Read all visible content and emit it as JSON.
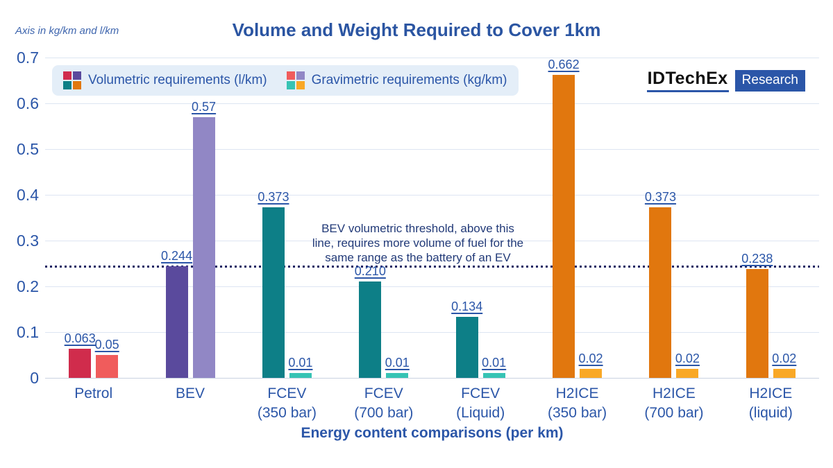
{
  "page": {
    "axis_note": "Axis in kg/km and l/km",
    "title": "Volume and Weight Required to Cover 1km",
    "xlabel": "Energy content comparisons (per km)"
  },
  "brand": {
    "name": "IDTechEx",
    "badge": "Research",
    "accent": "#2b56a8"
  },
  "legend": {
    "items": [
      {
        "label": "Volumetric requirements (l/km)",
        "swatches": [
          "#d02c4c",
          "#5a4a9d",
          "#0d7f87",
          "#e1770e"
        ]
      },
      {
        "label": "Gravimetric requirements (kg/km)",
        "swatches": [
          "#f05c5c",
          "#9187c5",
          "#36c3b4",
          "#f9a826"
        ]
      }
    ]
  },
  "annotation": {
    "lines": [
      "BEV volumetric threshold, above this",
      "line, requires more volume of fuel for the",
      "same range as the battery of an EV"
    ]
  },
  "palette": {
    "text_blue": "#2b56a8",
    "title_blue": "#2b55a2",
    "gridline": "#dde5f2",
    "baseline": "#c9d1e1",
    "threshold_line": "#151d63",
    "legend_background": "#e4eef8",
    "annotation_text": "#223a78"
  },
  "chart_data": {
    "type": "bar",
    "title": "Volume and Weight Required to Cover 1km",
    "xlabel": "Energy content comparisons (per km)",
    "ylabel": "Axis in kg/km and l/km",
    "ylim": [
      0,
      0.7
    ],
    "ytick_labels": [
      "0",
      "0.1",
      "0.2",
      "0.3",
      "0.4",
      "0.5",
      "0.6",
      "0.7"
    ],
    "grid": true,
    "legend_position": "top-left",
    "series_names": [
      "Volumetric requirements (l/km)",
      "Gravimetric requirements (kg/km)"
    ],
    "threshold": {
      "value": 0.244,
      "description": "BEV volumetric threshold",
      "style": "dotted"
    },
    "groups": [
      {
        "category_lines": [
          "Petrol"
        ],
        "volumetric": {
          "value": 0.063,
          "label": "0.063",
          "color": "#d02c4c"
        },
        "gravimetric": {
          "value": 0.05,
          "label": "0.05",
          "color": "#f05c5c"
        }
      },
      {
        "category_lines": [
          "BEV"
        ],
        "volumetric": {
          "value": 0.244,
          "label": "0.244",
          "color": "#5a4a9d"
        },
        "gravimetric": {
          "value": 0.57,
          "label": "0.57",
          "color": "#9187c5"
        }
      },
      {
        "category_lines": [
          "FCEV",
          "(350 bar)"
        ],
        "volumetric": {
          "value": 0.373,
          "label": "0.373",
          "color": "#0d7f87"
        },
        "gravimetric": {
          "value": 0.01,
          "label": "0.01",
          "color": "#36c3b4"
        }
      },
      {
        "category_lines": [
          "FCEV",
          "(700 bar)"
        ],
        "volumetric": {
          "value": 0.21,
          "label": "0.210",
          "color": "#0d7f87"
        },
        "gravimetric": {
          "value": 0.01,
          "label": "0.01",
          "color": "#36c3b4"
        }
      },
      {
        "category_lines": [
          "FCEV",
          "(Liquid)"
        ],
        "volumetric": {
          "value": 0.134,
          "label": "0.134",
          "color": "#0d7f87"
        },
        "gravimetric": {
          "value": 0.01,
          "label": "0.01",
          "color": "#36c3b4"
        }
      },
      {
        "category_lines": [
          "H2ICE",
          "(350 bar)"
        ],
        "volumetric": {
          "value": 0.662,
          "label": "0.662",
          "color": "#e1770e"
        },
        "gravimetric": {
          "value": 0.02,
          "label": "0.02",
          "color": "#f9a826"
        }
      },
      {
        "category_lines": [
          "H2ICE",
          "(700 bar)"
        ],
        "volumetric": {
          "value": 0.373,
          "label": "0.373",
          "color": "#e1770e"
        },
        "gravimetric": {
          "value": 0.02,
          "label": "0.02",
          "color": "#f9a826"
        }
      },
      {
        "category_lines": [
          "H2ICE",
          "(liquid)"
        ],
        "volumetric": {
          "value": 0.238,
          "label": "0.238",
          "color": "#e1770e"
        },
        "gravimetric": {
          "value": 0.02,
          "label": "0.02",
          "color": "#f9a826"
        }
      }
    ]
  }
}
